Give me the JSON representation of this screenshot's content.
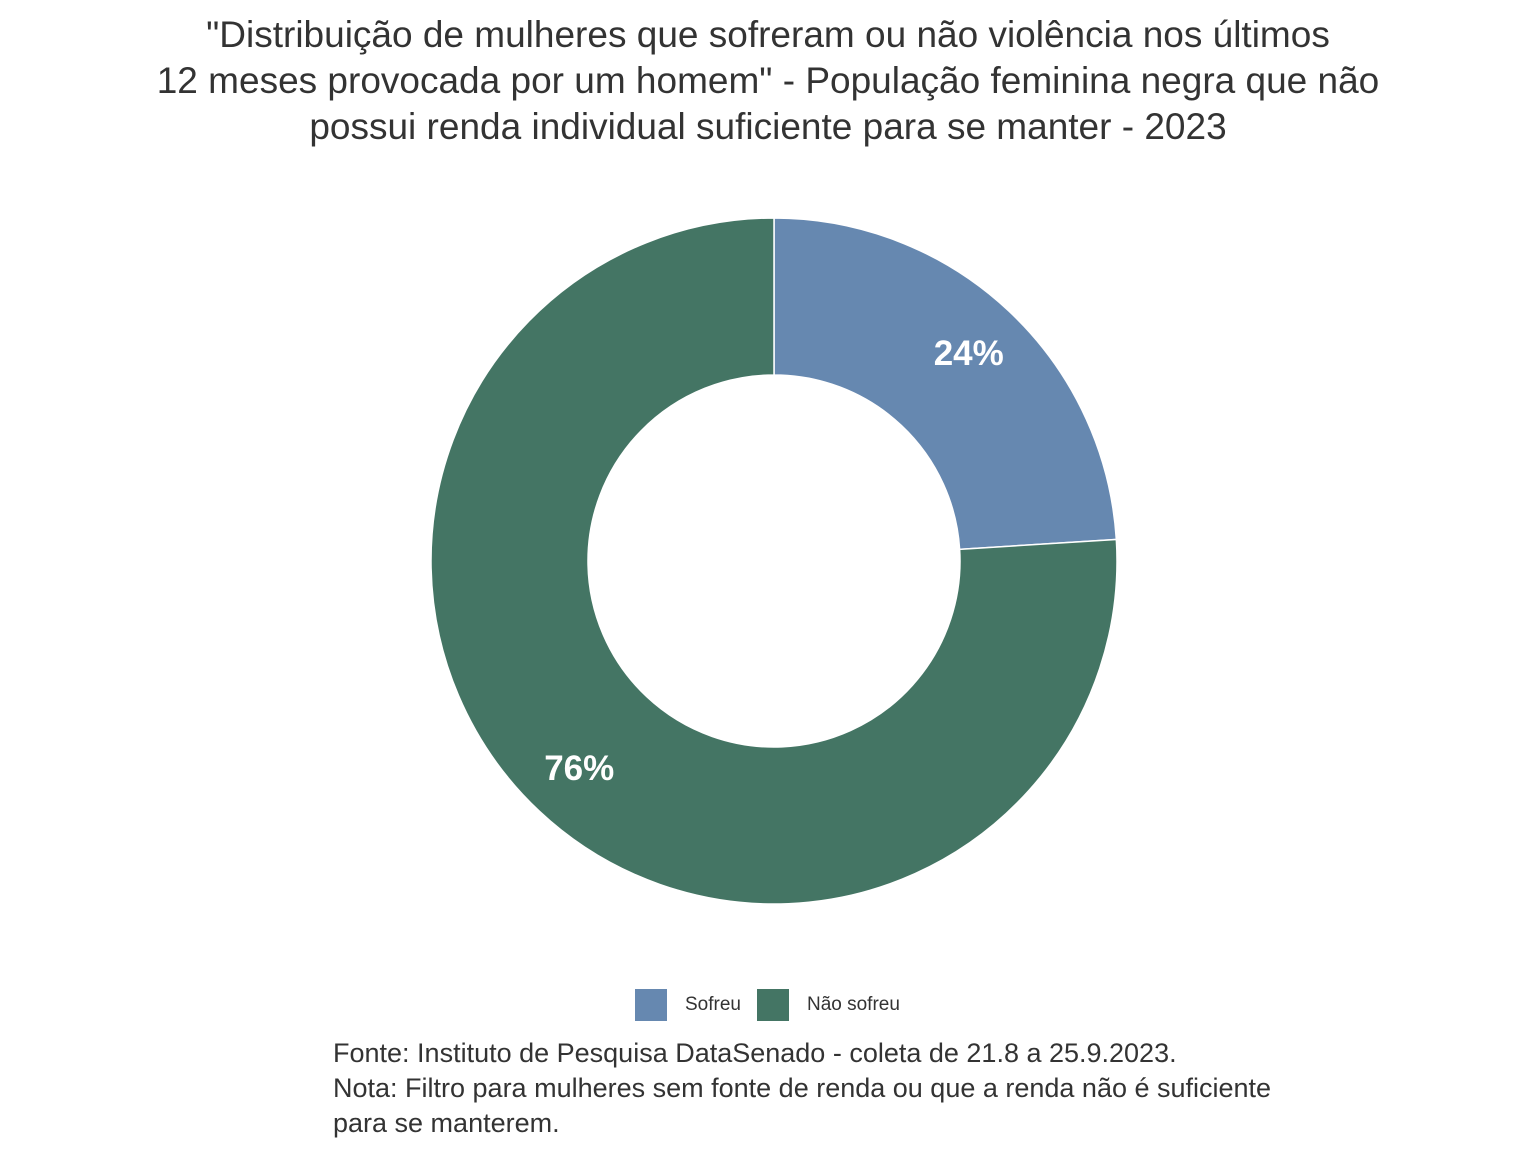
{
  "chart_data": {
    "type": "pie",
    "variant": "donut",
    "title_lines": [
      "\"Distribuição de mulheres que sofreram ou não violência nos últimos",
      "12 meses provocada por um homem\" - População feminina negra que não",
      "possui renda individual suficiente para se manter - 2023"
    ],
    "slices": [
      {
        "label": "Sofreu",
        "value": 24,
        "value_label": "24%",
        "color": "#6688b0"
      },
      {
        "label": "Não sofreu",
        "value": 76,
        "value_label": "76%",
        "color": "#447564"
      }
    ],
    "legend_position": "bottom",
    "caption_lines": [
      "Fonte: Instituto de Pesquisa DataSenado - coleta de 21.8 a 25.9.2023.",
      "Nota: Filtro para mulheres sem fonte de renda ou que a renda não é suficiente",
      "para se manterem."
    ]
  }
}
